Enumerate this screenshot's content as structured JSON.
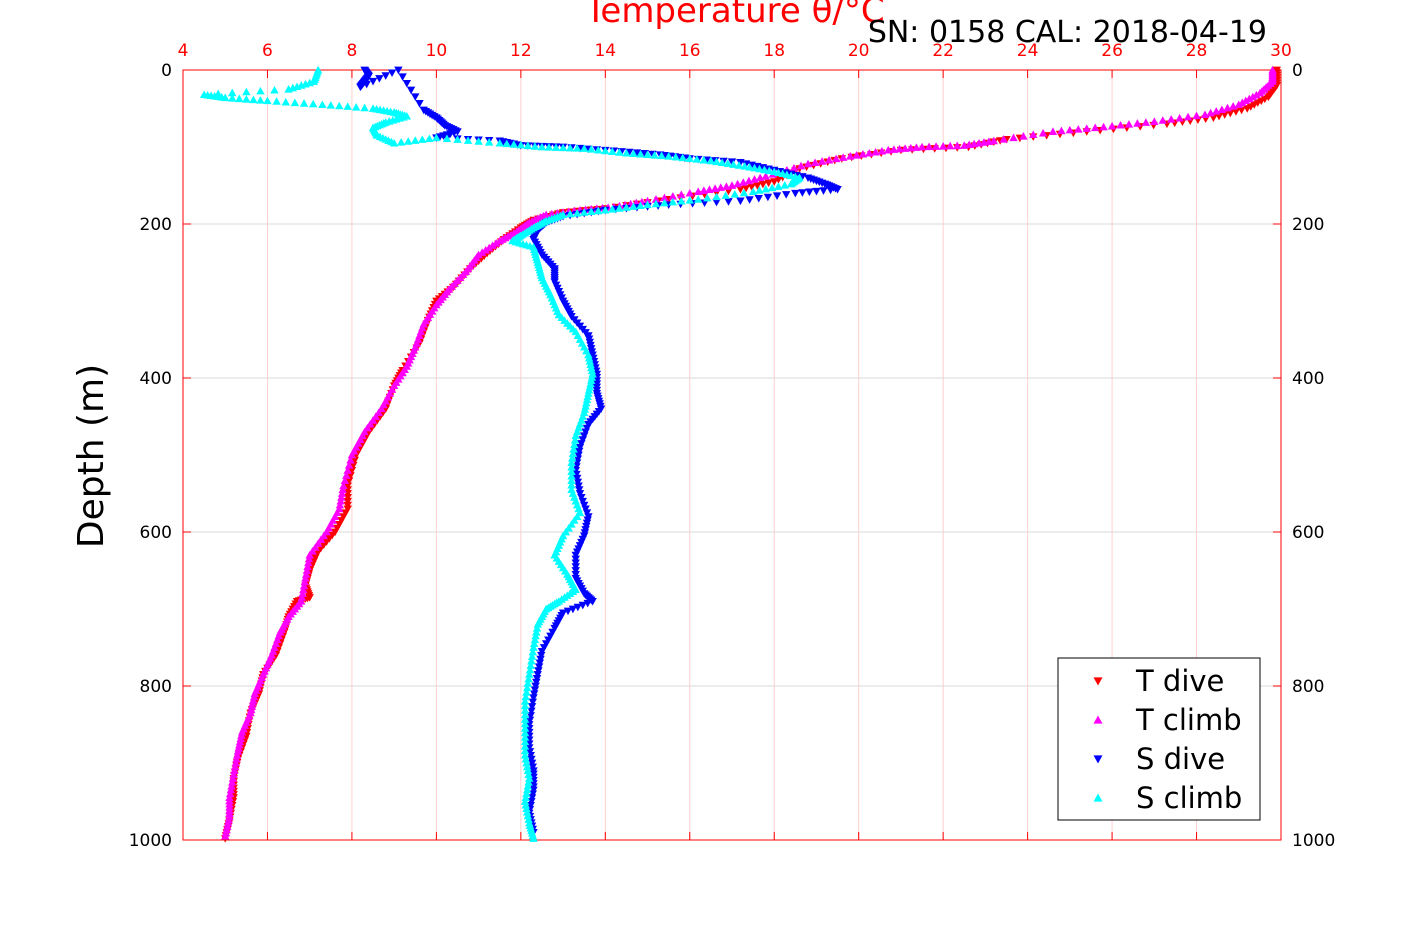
{
  "chart_data": {
    "type": "scatter",
    "title": "Temperature θ/°C",
    "annotation": "SN: 0158  CAL: 2018-04-19",
    "xlabel": "Temperature θ/°C",
    "ylabel": "Depth (m)",
    "xlim": [
      4,
      30
    ],
    "ylim": [
      0,
      1000
    ],
    "y_reversed": true,
    "x_ticks": [
      "4",
      "6",
      "8",
      "10",
      "12",
      "14",
      "16",
      "18",
      "20",
      "22",
      "24",
      "26",
      "28",
      "30"
    ],
    "y_ticks": [
      "0",
      "200",
      "400",
      "600",
      "800",
      "1000"
    ],
    "grid": true,
    "legend_position": "bottom-right",
    "series": [
      {
        "name": "T dive",
        "marker": "triangle-down",
        "color": "#ff0000",
        "points": [
          [
            29.9,
            0
          ],
          [
            29.9,
            20
          ],
          [
            29.7,
            35
          ],
          [
            29.2,
            50
          ],
          [
            28.4,
            62
          ],
          [
            27.3,
            70
          ],
          [
            25.4,
            80
          ],
          [
            23.5,
            90
          ],
          [
            22.6,
            100
          ],
          [
            21.0,
            104
          ],
          [
            19.6,
            115
          ],
          [
            18.6,
            128
          ],
          [
            18.0,
            145
          ],
          [
            17.2,
            155
          ],
          [
            15.5,
            168
          ],
          [
            14.0,
            180
          ],
          [
            13.0,
            185
          ],
          [
            12.3,
            195
          ],
          [
            12.0,
            205
          ],
          [
            11.6,
            220
          ],
          [
            11.2,
            238
          ],
          [
            10.8,
            258
          ],
          [
            10.4,
            282
          ],
          [
            10.0,
            300
          ],
          [
            9.8,
            325
          ],
          [
            9.6,
            355
          ],
          [
            9.2,
            390
          ],
          [
            9.0,
            410
          ],
          [
            8.8,
            440
          ],
          [
            8.4,
            470
          ],
          [
            8.1,
            500
          ],
          [
            7.9,
            540
          ],
          [
            7.9,
            570
          ],
          [
            7.6,
            600
          ],
          [
            7.2,
            625
          ],
          [
            7.0,
            650
          ],
          [
            6.9,
            670
          ],
          [
            7.0,
            685
          ],
          [
            6.7,
            690
          ],
          [
            6.5,
            710
          ],
          [
            6.4,
            730
          ],
          [
            6.2,
            760
          ],
          [
            5.9,
            785
          ],
          [
            5.8,
            810
          ],
          [
            5.6,
            835
          ],
          [
            5.5,
            865
          ],
          [
            5.3,
            895
          ],
          [
            5.2,
            920
          ],
          [
            5.2,
            945
          ],
          [
            5.1,
            975
          ],
          [
            5.0,
            998
          ]
        ]
      },
      {
        "name": "T climb",
        "marker": "triangle-up",
        "color": "#ff00ff",
        "points": [
          [
            29.8,
            0
          ],
          [
            29.8,
            15
          ],
          [
            29.5,
            30
          ],
          [
            29.0,
            45
          ],
          [
            28.2,
            58
          ],
          [
            27.0,
            67
          ],
          [
            25.8,
            74
          ],
          [
            24.6,
            80
          ],
          [
            23.2,
            92
          ],
          [
            22.5,
            98
          ],
          [
            21.5,
            100
          ],
          [
            20.7,
            104
          ],
          [
            19.8,
            112
          ],
          [
            18.8,
            122
          ],
          [
            17.8,
            138
          ],
          [
            17.0,
            150
          ],
          [
            16.2,
            158
          ],
          [
            15.0,
            170
          ],
          [
            14.2,
            178
          ],
          [
            13.4,
            182
          ],
          [
            12.6,
            188
          ],
          [
            12.2,
            198
          ],
          [
            11.9,
            210
          ],
          [
            11.5,
            222
          ],
          [
            11.0,
            240
          ],
          [
            10.7,
            262
          ],
          [
            10.3,
            285
          ],
          [
            10.0,
            305
          ],
          [
            9.7,
            330
          ],
          [
            9.5,
            360
          ],
          [
            9.3,
            385
          ],
          [
            9.0,
            410
          ],
          [
            8.7,
            440
          ],
          [
            8.3,
            470
          ],
          [
            8.0,
            500
          ],
          [
            7.8,
            540
          ],
          [
            7.7,
            570
          ],
          [
            7.4,
            600
          ],
          [
            7.0,
            630
          ],
          [
            6.9,
            660
          ],
          [
            6.8,
            690
          ],
          [
            6.5,
            710
          ],
          [
            6.3,
            730
          ],
          [
            6.1,
            760
          ],
          [
            5.9,
            785
          ],
          [
            5.7,
            810
          ],
          [
            5.6,
            835
          ],
          [
            5.4,
            860
          ],
          [
            5.3,
            885
          ],
          [
            5.2,
            915
          ],
          [
            5.1,
            945
          ],
          [
            5.1,
            970
          ],
          [
            5.0,
            995
          ]
        ]
      },
      {
        "name": "S dive",
        "marker": "triangle-down",
        "color": "#0000ff",
        "points": [
          [
            8.3,
            0
          ],
          [
            8.4,
            8
          ],
          [
            8.3,
            15
          ],
          [
            8.2,
            22
          ],
          [
            9.1,
            0
          ],
          [
            9.7,
            52
          ],
          [
            10.0,
            62
          ],
          [
            10.2,
            72
          ],
          [
            10.5,
            80
          ],
          [
            10.0,
            88
          ],
          [
            11.5,
            92
          ],
          [
            12.0,
            98
          ],
          [
            13.0,
            100
          ],
          [
            14.2,
            105
          ],
          [
            15.3,
            110
          ],
          [
            16.0,
            115
          ],
          [
            17.2,
            120
          ],
          [
            18.0,
            130
          ],
          [
            18.8,
            140
          ],
          [
            19.2,
            148
          ],
          [
            19.5,
            155
          ],
          [
            18.5,
            160
          ],
          [
            17.2,
            170
          ],
          [
            15.5,
            175
          ],
          [
            14.0,
            182
          ],
          [
            13.0,
            190
          ],
          [
            12.6,
            198
          ],
          [
            12.4,
            208
          ],
          [
            12.3,
            220
          ],
          [
            12.5,
            240
          ],
          [
            12.8,
            258
          ],
          [
            12.8,
            275
          ],
          [
            13.0,
            300
          ],
          [
            13.2,
            320
          ],
          [
            13.6,
            345
          ],
          [
            13.7,
            370
          ],
          [
            13.8,
            395
          ],
          [
            13.8,
            420
          ],
          [
            13.9,
            440
          ],
          [
            13.6,
            460
          ],
          [
            13.4,
            490
          ],
          [
            13.3,
            520
          ],
          [
            13.4,
            550
          ],
          [
            13.6,
            580
          ],
          [
            13.5,
            605
          ],
          [
            13.3,
            630
          ],
          [
            13.3,
            660
          ],
          [
            13.5,
            680
          ],
          [
            13.7,
            690
          ],
          [
            13.0,
            705
          ],
          [
            12.8,
            725
          ],
          [
            12.5,
            755
          ],
          [
            12.4,
            785
          ],
          [
            12.3,
            815
          ],
          [
            12.2,
            850
          ],
          [
            12.2,
            880
          ],
          [
            12.3,
            910
          ],
          [
            12.3,
            935
          ],
          [
            12.2,
            965
          ],
          [
            12.3,
            990
          ]
        ]
      },
      {
        "name": "S climb",
        "marker": "triangle-up",
        "color": "#00ffff",
        "points": [
          [
            7.2,
            0
          ],
          [
            7.1,
            15
          ],
          [
            6.5,
            25
          ],
          [
            4.5,
            32
          ],
          [
            5.0,
            36
          ],
          [
            6.0,
            40
          ],
          [
            7.3,
            45
          ],
          [
            8.5,
            50
          ],
          [
            9.0,
            55
          ],
          [
            9.3,
            60
          ],
          [
            8.8,
            68
          ],
          [
            8.5,
            75
          ],
          [
            8.6,
            85
          ],
          [
            9.0,
            95
          ],
          [
            10.0,
            88
          ],
          [
            11.5,
            95
          ],
          [
            12.5,
            100
          ],
          [
            13.5,
            102
          ],
          [
            14.5,
            108
          ],
          [
            15.5,
            112
          ],
          [
            16.5,
            118
          ],
          [
            17.3,
            125
          ],
          [
            18.0,
            132
          ],
          [
            18.6,
            140
          ],
          [
            18.4,
            148
          ],
          [
            17.5,
            158
          ],
          [
            16.2,
            168
          ],
          [
            15.0,
            175
          ],
          [
            14.0,
            182
          ],
          [
            13.0,
            188
          ],
          [
            12.6,
            196
          ],
          [
            12.3,
            205
          ],
          [
            12.0,
            215
          ],
          [
            11.8,
            222
          ],
          [
            12.3,
            230
          ],
          [
            12.4,
            250
          ],
          [
            12.5,
            270
          ],
          [
            12.7,
            292
          ],
          [
            12.9,
            318
          ],
          [
            13.3,
            340
          ],
          [
            13.6,
            370
          ],
          [
            13.7,
            395
          ],
          [
            13.6,
            420
          ],
          [
            13.5,
            445
          ],
          [
            13.3,
            475
          ],
          [
            13.2,
            510
          ],
          [
            13.2,
            545
          ],
          [
            13.4,
            575
          ],
          [
            13.0,
            605
          ],
          [
            12.8,
            630
          ],
          [
            13.1,
            655
          ],
          [
            13.3,
            675
          ],
          [
            12.9,
            690
          ],
          [
            12.6,
            700
          ],
          [
            12.4,
            720
          ],
          [
            12.3,
            750
          ],
          [
            12.2,
            785
          ],
          [
            12.1,
            820
          ],
          [
            12.1,
            855
          ],
          [
            12.1,
            890
          ],
          [
            12.2,
            920
          ],
          [
            12.1,
            950
          ],
          [
            12.2,
            978
          ],
          [
            12.3,
            998
          ]
        ]
      }
    ]
  },
  "colors": {
    "axis": "#ff0000",
    "grid_vertical": "#ffd0d0",
    "grid_horizontal": "#d9d9d9",
    "text": "#000000"
  }
}
